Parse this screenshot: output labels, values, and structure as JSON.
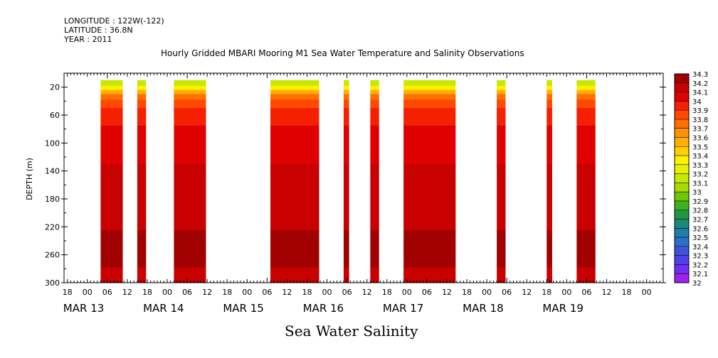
{
  "header": {
    "longitude": "LONGITUDE : 122W(-122)",
    "latitude": "LATITUDE : 36.8N",
    "year": "YEAR : 2011"
  },
  "footer_label": "Sea Water Salinity",
  "chart_data": {
    "type": "heatmap",
    "title": "Hourly Gridded MBARI Mooring M1 Sea Water Temperature and Salinity Observations",
    "ylabel": "DEPTH (m)",
    "xlabel": "",
    "ylim": [
      300,
      0
    ],
    "y_ticks": [
      20,
      60,
      100,
      140,
      180,
      220,
      260,
      300
    ],
    "x_range_hours": [
      "MAR 12 11:00",
      "MAR 19 23:00"
    ],
    "x_hour_ticks": [
      "18",
      "00",
      "06",
      "12",
      "18",
      "00",
      "06",
      "12",
      "18",
      "00",
      "06",
      "12",
      "18",
      "00",
      "06",
      "12",
      "18",
      "00",
      "06",
      "12",
      "18",
      "00",
      "06",
      "12",
      "18",
      "00",
      "06",
      "12",
      "18",
      "00"
    ],
    "x_day_labels": [
      "MAR 13",
      "MAR 14",
      "MAR 15",
      "MAR 16",
      "MAR 17",
      "MAR 18",
      "MAR 19"
    ],
    "colorbar": {
      "labels": [
        "34.3",
        "34.2",
        "34.1",
        "34",
        "33.9",
        "33.8",
        "33.7",
        "33.6",
        "33.5",
        "33.4",
        "33.3",
        "33.2",
        "33.1",
        "33",
        "32.9",
        "32.8",
        "32.7",
        "32.6",
        "32.5",
        "32.4",
        "32.3",
        "32.2",
        "32.1",
        "32"
      ],
      "colors": [
        "#a00000",
        "#c80000",
        "#e00000",
        "#f52000",
        "#ff4800",
        "#ff6e00",
        "#ff9200",
        "#ffb000",
        "#ffd000",
        "#fff000",
        "#e8f000",
        "#c8e800",
        "#a8dc00",
        "#70c800",
        "#40b020",
        "#209840",
        "#188a78",
        "#1e7eaa",
        "#2c6fc8",
        "#3c55d8",
        "#5040e8",
        "#7030f0",
        "#a020f0",
        "#e000f0"
      ]
    },
    "data_segments": [
      {
        "start": "MAR 12 22:00",
        "end": "MAR 13 04:00"
      },
      {
        "start": "MAR 13 09:00",
        "end": "MAR 13 11:00"
      },
      {
        "start": "MAR 13 20:00",
        "end": "MAR 14 05:00"
      },
      {
        "start": "MAR 15 01:00",
        "end": "MAR 15 15:00"
      },
      {
        "start": "MAR 15 23:00",
        "end": "MAR 16 00:00"
      },
      {
        "start": "MAR 16 07:00",
        "end": "MAR 16 09:00"
      },
      {
        "start": "MAR 16 17:00",
        "end": "MAR 17 08:00"
      },
      {
        "start": "MAR 17 21:00",
        "end": "MAR 17 23:00"
      },
      {
        "start": "MAR 18 12:00",
        "end": "MAR 18 13:00"
      },
      {
        "start": "MAR 18 21:00",
        "end": "MAR 19 02:00"
      }
    ],
    "salinity_profile": [
      {
        "depth_range": [
          10,
          18
        ],
        "salinity": 33.2
      },
      {
        "depth_range": [
          18,
          24
        ],
        "salinity": 33.4
      },
      {
        "depth_range": [
          24,
          30
        ],
        "salinity": 33.6
      },
      {
        "depth_range": [
          30,
          38
        ],
        "salinity": 33.8
      },
      {
        "depth_range": [
          38,
          50
        ],
        "salinity": 33.9
      },
      {
        "depth_range": [
          50,
          75
        ],
        "salinity": 34.0
      },
      {
        "depth_range": [
          75,
          130
        ],
        "salinity": 34.1
      },
      {
        "depth_range": [
          130,
          225
        ],
        "salinity": 34.2
      },
      {
        "depth_range": [
          225,
          278
        ],
        "salinity": 34.3
      },
      {
        "depth_range": [
          278,
          300
        ],
        "salinity": 34.2
      }
    ]
  }
}
